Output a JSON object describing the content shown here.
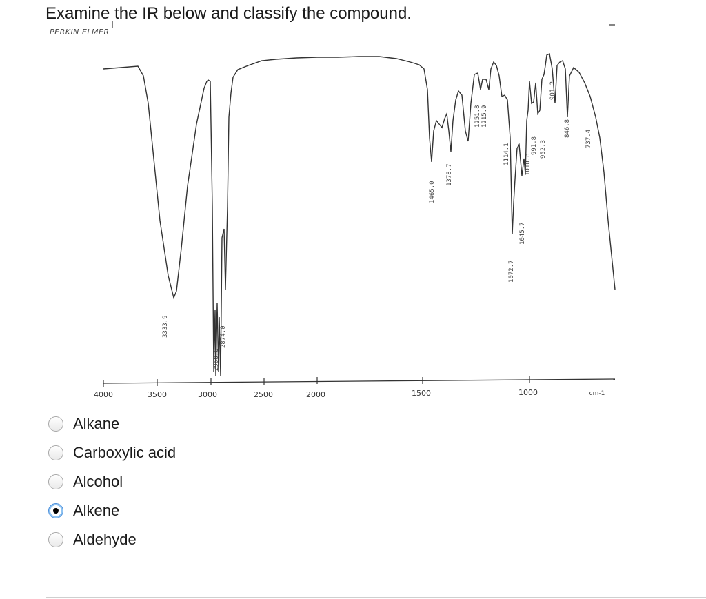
{
  "question": "Examine the IR below and classify the compound.",
  "spectrum": {
    "brand": "PERKIN ELMER",
    "x_unit": "cm-1",
    "x_ticks": [
      "4000",
      "3500",
      "3000",
      "2500",
      "2000",
      "1500",
      "1000"
    ],
    "peak_labels": [
      "3333.9",
      "2968.0",
      "2874.0",
      "1465.0",
      "1378.7",
      "1251.8",
      "1215.9",
      "1114.1",
      "1072.7",
      "1045.7",
      "1010.8",
      "991.8",
      "952.3",
      "901.2",
      "846.8",
      "737.4"
    ]
  },
  "chart_data": {
    "type": "line",
    "xlabel": "cm-1",
    "x_ticks": [
      4000,
      3500,
      3000,
      2500,
      2000,
      1500,
      1000
    ],
    "peaks_cm1": [
      3333.9,
      2968.0,
      2874.0,
      1465.0,
      1378.7,
      1251.8,
      1215.9,
      1114.1,
      1072.7,
      1045.7,
      1010.8,
      991.8,
      952.3,
      901.2,
      846.8,
      737.4
    ]
  },
  "options": [
    {
      "label": "Alkane",
      "checked": false
    },
    {
      "label": "Carboxylic acid",
      "checked": false
    },
    {
      "label": "Alcohol",
      "checked": false
    },
    {
      "label": "Alkene",
      "checked": true
    },
    {
      "label": "Aldehyde",
      "checked": false
    }
  ]
}
